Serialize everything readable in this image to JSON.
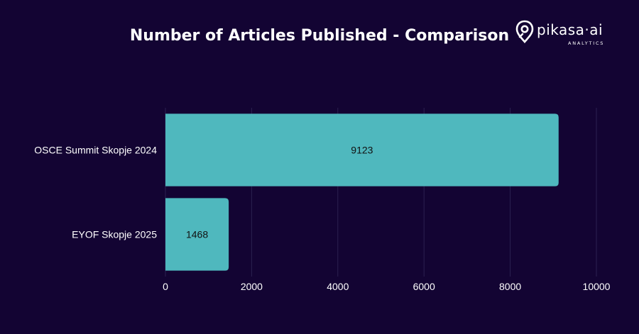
{
  "logo": {
    "wordmark": "pikasa·ai",
    "subtitle": "ANALYTICS"
  },
  "chart_data": {
    "type": "bar",
    "orientation": "horizontal",
    "title": "Number of Articles Published - Comparison",
    "categories": [
      "OSCE Summit Skopje 2024",
      "EYOF Skopje 2025"
    ],
    "values": [
      9123,
      1468
    ],
    "data_labels": [
      "9123",
      "1468"
    ],
    "xlim": [
      0,
      10000
    ],
    "xticks": [
      0,
      2000,
      4000,
      6000,
      8000,
      10000
    ],
    "xlabel": "",
    "ylabel": "",
    "grid": "vertical",
    "legend": "none",
    "colors": {
      "background": "#130433",
      "bar": "#4fb8be",
      "grid": "#2b2150",
      "text": "#ffffff",
      "data_label": "#111111"
    }
  }
}
